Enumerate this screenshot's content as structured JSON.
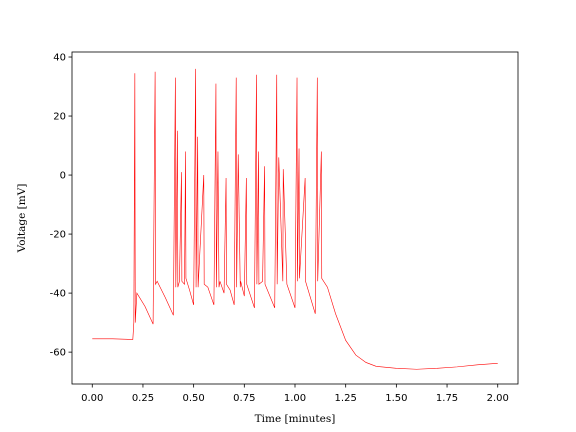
{
  "chart_data": {
    "type": "line",
    "xlabel": "Time [minutes]",
    "ylabel": "Voltage [mV]",
    "color": "#ff0000",
    "x": [
      0.0,
      0.1,
      0.2,
      0.205,
      0.21,
      0.212,
      0.22,
      0.26,
      0.3,
      0.31,
      0.312,
      0.32,
      0.36,
      0.4,
      0.41,
      0.412,
      0.42,
      0.422,
      0.43,
      0.44,
      0.442,
      0.455,
      0.46,
      0.462,
      0.48,
      0.5,
      0.51,
      0.512,
      0.52,
      0.522,
      0.55,
      0.552,
      0.57,
      0.6,
      0.61,
      0.612,
      0.62,
      0.625,
      0.63,
      0.65,
      0.66,
      0.662,
      0.68,
      0.7,
      0.71,
      0.712,
      0.72,
      0.73,
      0.732,
      0.75,
      0.76,
      0.762,
      0.8,
      0.81,
      0.812,
      0.82,
      0.822,
      0.84,
      0.85,
      0.852,
      0.9,
      0.91,
      0.912,
      0.92,
      0.94,
      0.942,
      0.96,
      1.0,
      1.01,
      1.012,
      1.02,
      1.022,
      1.05,
      1.052,
      1.1,
      1.11,
      1.112,
      1.13,
      1.132,
      1.16,
      1.2,
      1.25,
      1.3,
      1.35,
      1.4,
      1.5,
      1.6,
      1.7,
      1.8,
      1.9,
      2.0
    ],
    "values": [
      -55.5,
      -55.5,
      -55.7,
      -50,
      34.5,
      -50,
      -40,
      -44.5,
      -50.5,
      35,
      -37,
      -36,
      -41.5,
      -47.5,
      33,
      -38,
      15,
      -38,
      -36,
      1,
      -36,
      -37,
      8,
      -35,
      -39,
      -44,
      36,
      -38,
      13,
      -38,
      0,
      -37,
      -38,
      -44,
      31,
      -38,
      8,
      -38,
      -36,
      -40,
      -1,
      -37,
      -39,
      -44,
      33,
      -38,
      7,
      -38,
      -36,
      -41,
      -1,
      -37,
      -45,
      34,
      -37,
      8,
      -37,
      -36,
      3,
      -37,
      -45,
      34,
      -37,
      6,
      -36,
      2,
      -37,
      -45,
      33,
      -36,
      9,
      -35,
      -1,
      -36,
      -47,
      33,
      -36,
      8,
      -35,
      -38,
      -47,
      -56,
      -61,
      -63.5,
      -64.8,
      -65.5,
      -65.8,
      -65.5,
      -65,
      -64.3,
      -63.8
    ],
    "xlim": [
      -0.1,
      2.1
    ],
    "ylim": [
      -70.8,
      41.7
    ],
    "xticks": [
      {
        "value": 0,
        "label": "0.00"
      },
      0.25,
      {
        "value": 0.5,
        "label": "0.50"
      },
      0.75,
      {
        "value": 1,
        "label": "1.00"
      },
      1.25,
      {
        "value": 1.5,
        "label": "1.50"
      },
      1.75,
      {
        "value": 2,
        "label": "2.00"
      }
    ],
    "yticks": [
      -60,
      -40,
      -20,
      0,
      20,
      40
    ]
  }
}
